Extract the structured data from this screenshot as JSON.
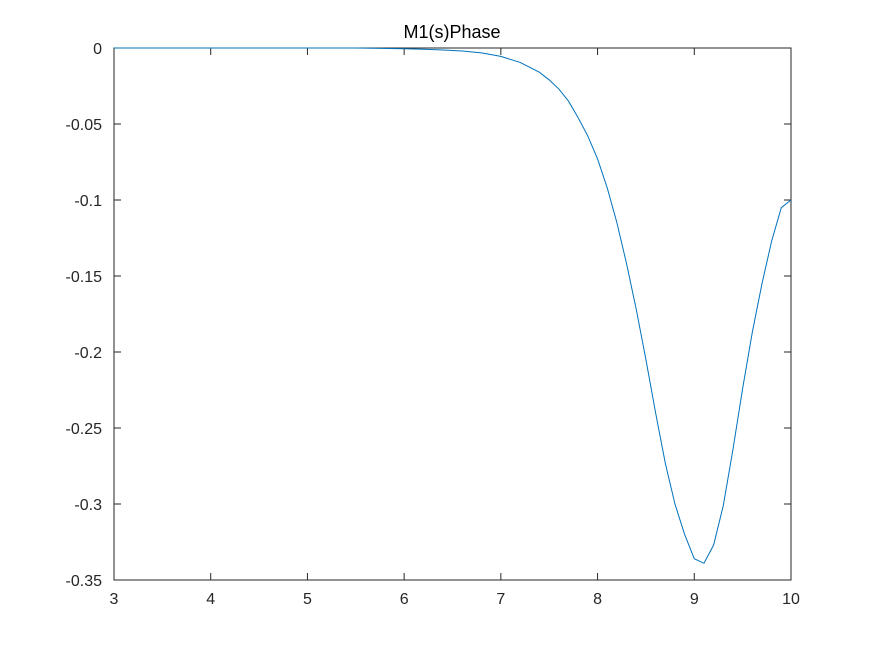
{
  "chart_data": {
    "type": "line",
    "title": "M1(s)Phase",
    "xlabel": "",
    "ylabel": "",
    "xlim": [
      3,
      10
    ],
    "ylim": [
      -0.35,
      0
    ],
    "xticks": [
      3,
      4,
      5,
      6,
      7,
      8,
      9,
      10
    ],
    "yticks": [
      0,
      -0.05,
      -0.1,
      -0.15,
      -0.2,
      -0.25,
      -0.3,
      -0.35
    ],
    "xtick_labels": [
      "3",
      "4",
      "5",
      "6",
      "7",
      "8",
      "9",
      "10"
    ],
    "ytick_labels": [
      "0",
      "-0.05",
      "-0.1",
      "-0.15",
      "-0.2",
      "-0.25",
      "-0.3",
      "-0.35"
    ],
    "grid": false,
    "legend": "none",
    "line_color": "#0072BD",
    "series": [
      {
        "x": [
          3.0,
          3.5,
          4.0,
          4.5,
          5.0,
          5.5,
          6.0,
          6.2,
          6.4,
          6.6,
          6.8,
          7.0,
          7.2,
          7.4,
          7.5,
          7.6,
          7.7,
          7.8,
          7.9,
          8.0,
          8.1,
          8.2,
          8.3,
          8.4,
          8.5,
          8.6,
          8.7,
          8.8,
          8.9,
          9.0,
          9.1,
          9.2,
          9.3,
          9.4,
          9.5,
          9.6,
          9.7,
          9.8,
          9.9,
          10.0
        ],
        "values": [
          0.0,
          0.0,
          0.0,
          0.0,
          0.0,
          0.0,
          -0.0005,
          -0.0008,
          -0.0013,
          -0.002,
          -0.0032,
          -0.0055,
          -0.0095,
          -0.016,
          -0.021,
          -0.027,
          -0.035,
          -0.046,
          -0.058,
          -0.073,
          -0.092,
          -0.115,
          -0.142,
          -0.172,
          -0.205,
          -0.24,
          -0.273,
          -0.3,
          -0.32,
          -0.336,
          -0.339,
          -0.327,
          -0.301,
          -0.264,
          -0.224,
          -0.187,
          -0.155,
          -0.127,
          -0.105,
          -0.1
        ]
      }
    ]
  }
}
